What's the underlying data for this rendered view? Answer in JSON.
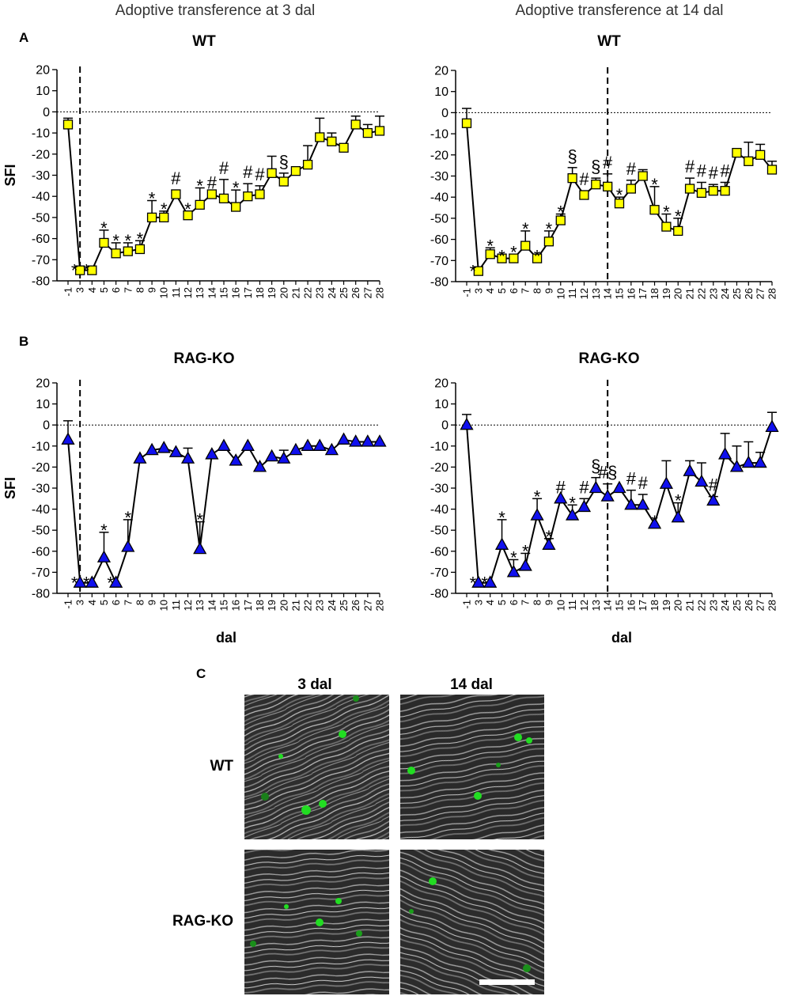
{
  "column_titles": [
    "Adoptive transference at 3 dal",
    "Adoptive transference at 14 dal"
  ],
  "panel_tags": {
    "a": "A",
    "b": "B",
    "c": "C"
  },
  "chart_data": [
    {
      "type": "line",
      "panel": "A",
      "title": "WT",
      "ylabel": "SFI",
      "xlabel": "",
      "ylim": [
        -80,
        20
      ],
      "yticks": [
        20,
        10,
        0,
        -10,
        -20,
        -30,
        -40,
        -50,
        -60,
        -70,
        -80
      ],
      "marker": "square",
      "marker_color": "#ffff00",
      "transfer_day": 3,
      "zero_reference_line": true,
      "x": [
        "-1",
        "3",
        "4",
        "5",
        "6",
        "7",
        "8",
        "9",
        "10",
        "11",
        "12",
        "13",
        "14",
        "15",
        "16",
        "17",
        "18",
        "19",
        "20",
        "21",
        "22",
        "23",
        "24",
        "25",
        "26",
        "27",
        "28"
      ],
      "values": [
        -6,
        -75,
        -75,
        -62,
        -67,
        -66,
        -65,
        -50,
        -50,
        -39,
        -49,
        -44,
        -39,
        -41,
        -45,
        -40,
        -39,
        -29,
        -33,
        -28,
        -25,
        -12,
        -14,
        -17,
        -6,
        -10,
        -9
      ],
      "error_up": [
        3,
        0,
        0,
        6,
        5,
        4,
        4,
        8,
        3,
        2,
        2,
        8,
        0,
        9,
        8,
        6,
        4,
        8,
        4,
        0,
        9,
        9,
        4,
        0,
        4,
        4,
        7
      ],
      "annotations": [
        "",
        "*",
        "*",
        "*",
        "*",
        "*",
        "*",
        "*",
        "*",
        "#",
        "*",
        "*",
        "#",
        "#",
        "*",
        "#",
        "#",
        "",
        "§",
        "",
        "",
        "",
        "",
        "",
        "",
        "",
        ""
      ]
    },
    {
      "type": "line",
      "panel": "A",
      "title": "WT",
      "ylabel": "",
      "xlabel": "",
      "ylim": [
        -80,
        20
      ],
      "yticks": [
        20,
        10,
        0,
        -10,
        -20,
        -30,
        -40,
        -50,
        -60,
        -70,
        -80
      ],
      "marker": "square",
      "marker_color": "#ffff00",
      "transfer_day": 14,
      "zero_reference_line": true,
      "x": [
        "-1",
        "3",
        "4",
        "5",
        "6",
        "7",
        "8",
        "9",
        "10",
        "11",
        "12",
        "13",
        "14",
        "15",
        "16",
        "17",
        "18",
        "19",
        "20",
        "21",
        "22",
        "23",
        "24",
        "25",
        "26",
        "27",
        "28"
      ],
      "values": [
        -5,
        -75,
        -67,
        -69,
        -69,
        -63,
        -69,
        -61,
        -51,
        -31,
        -39,
        -34,
        -35,
        -43,
        -36,
        -30,
        -46,
        -54,
        -56,
        -36,
        -38,
        -37,
        -37,
        -19,
        -23,
        -20,
        -27
      ],
      "error_up": [
        7,
        0,
        3,
        0,
        2,
        7,
        0,
        5,
        3,
        5,
        2,
        3,
        6,
        3,
        4,
        3,
        11,
        6,
        6,
        5,
        5,
        3,
        4,
        2,
        9,
        5,
        4
      ],
      "annotations": [
        "",
        "*",
        "*",
        "*",
        "*",
        "*",
        "*",
        "*",
        "*",
        "§",
        "#",
        "§",
        "#",
        "*",
        "#",
        "",
        "*",
        "*",
        "*",
        "#",
        "#",
        "#",
        "#",
        "",
        "",
        "",
        ""
      ]
    },
    {
      "type": "line",
      "panel": "B",
      "title": "RAG-KO",
      "ylabel": "SFI",
      "xlabel": "dal",
      "ylim": [
        -80,
        20
      ],
      "yticks": [
        20,
        10,
        0,
        -10,
        -20,
        -30,
        -40,
        -50,
        -60,
        -70,
        -80
      ],
      "marker": "triangle",
      "marker_color": "#1010ee",
      "transfer_day": 3,
      "zero_reference_line": true,
      "x": [
        "-1",
        "3",
        "4",
        "5",
        "6",
        "7",
        "8",
        "9",
        "10",
        "11",
        "12",
        "13",
        "14",
        "15",
        "16",
        "17",
        "18",
        "19",
        "20",
        "21",
        "22",
        "23",
        "24",
        "25",
        "26",
        "27",
        "28"
      ],
      "values": [
        -7,
        -75,
        -75,
        -63,
        -75,
        -58,
        -16,
        -12,
        -11,
        -13,
        -16,
        -59,
        -14,
        -10,
        -17,
        -10,
        -20,
        -15,
        -16,
        -12,
        -10,
        -10,
        -12,
        -7,
        -8,
        -8,
        -8
      ],
      "error_up": [
        9,
        0,
        0,
        12,
        0,
        13,
        0,
        0,
        0,
        0,
        5,
        13,
        0,
        0,
        0,
        0,
        0,
        0,
        4,
        0,
        0,
        0,
        0,
        0,
        0,
        0,
        0
      ],
      "annotations": [
        "",
        "*",
        "*",
        "*",
        "*",
        "*",
        "",
        "",
        "",
        "",
        "",
        "*",
        "",
        "",
        "",
        "",
        "",
        "",
        "",
        "",
        "",
        "",
        "",
        "",
        "",
        "",
        ""
      ]
    },
    {
      "type": "line",
      "panel": "B",
      "title": "RAG-KO",
      "ylabel": "",
      "xlabel": "dal",
      "ylim": [
        -80,
        20
      ],
      "yticks": [
        20,
        10,
        0,
        -10,
        -20,
        -30,
        -40,
        -50,
        -60,
        -70,
        -80
      ],
      "marker": "triangle",
      "marker_color": "#1010ee",
      "transfer_day": 14,
      "zero_reference_line": true,
      "x": [
        "-1",
        "3",
        "4",
        "5",
        "6",
        "7",
        "8",
        "9",
        "10",
        "11",
        "12",
        "13",
        "14",
        "15",
        "16",
        "17",
        "18",
        "19",
        "20",
        "21",
        "22",
        "23",
        "24",
        "25",
        "26",
        "27",
        "28"
      ],
      "values": [
        0,
        -75,
        -75,
        -57,
        -70,
        -67,
        -43,
        -57,
        -35,
        -43,
        -39,
        -30,
        -34,
        -30,
        -38,
        -38,
        -47,
        -28,
        -44,
        -22,
        -27,
        -36,
        -14,
        -20,
        -18,
        -18,
        -1
      ],
      "error_up": [
        5,
        0,
        0,
        12,
        6,
        6,
        8,
        3,
        0,
        5,
        4,
        5,
        6,
        0,
        7,
        5,
        0,
        11,
        7,
        5,
        9,
        2,
        10,
        10,
        10,
        5,
        7
      ],
      "annotations": [
        "",
        "*",
        "*",
        "*",
        "*",
        "*",
        "*",
        "*",
        "#",
        "*",
        "#",
        "§",
        "#§",
        "",
        "#",
        "#",
        "*",
        "",
        "*",
        "",
        "",
        "#",
        "",
        "",
        "",
        "",
        ""
      ]
    }
  ],
  "micrographs": {
    "column_labels": [
      "3 dal",
      "14 dal"
    ],
    "row_labels": [
      "WT",
      "RAG-KO"
    ],
    "tissue_color": "#3a3a3a",
    "cell_color": "#22dd22"
  }
}
